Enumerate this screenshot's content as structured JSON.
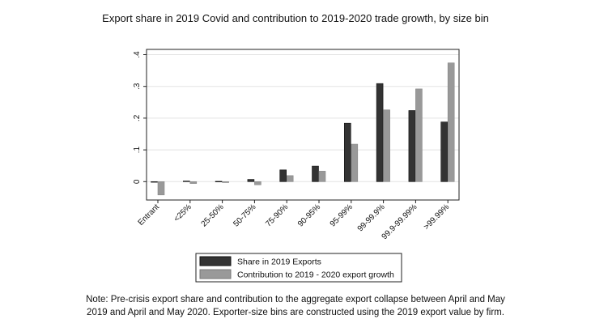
{
  "chart_data": {
    "type": "bar",
    "title": "Export share in 2019 Covid and contribution to 2019-2020 trade growth, by size bin",
    "xlabel": "",
    "ylabel": "",
    "categories": [
      "Entrant",
      "<25%",
      "25-50%",
      "50-75%",
      "75-90%",
      "90-95%",
      "95-99%",
      "99-99.9%",
      "99.9-99.99%",
      ">99.99%"
    ],
    "series": [
      {
        "name": "Share in 2019 Exports",
        "color": "#333333",
        "values": [
          0,
          0.002,
          0.001,
          0.007,
          0.037,
          0.049,
          0.184,
          0.309,
          0.224,
          0.188
        ]
      },
      {
        "name": "Contribution to 2019 - 2020 export growth",
        "color": "#999999",
        "values": [
          -0.042,
          -0.006,
          -0.003,
          -0.01,
          0.019,
          0.033,
          0.118,
          0.226,
          0.292,
          0.374
        ]
      }
    ],
    "ylim": [
      -0.06,
      0.41
    ],
    "yticks": [
      0,
      0.1,
      0.2,
      0.3,
      0.4
    ],
    "ytick_labels": [
      "0",
      ".1",
      ".2",
      ".3",
      ".4"
    ],
    "grid": true,
    "legend_position": "bottom"
  },
  "note": {
    "line1": "Note: Pre-crisis export share and contribution to the aggregate export collapse between April and May",
    "line2": "2019 and April and May 2020. Exporter-size bins are constructed using the 2019 export value by firm."
  }
}
